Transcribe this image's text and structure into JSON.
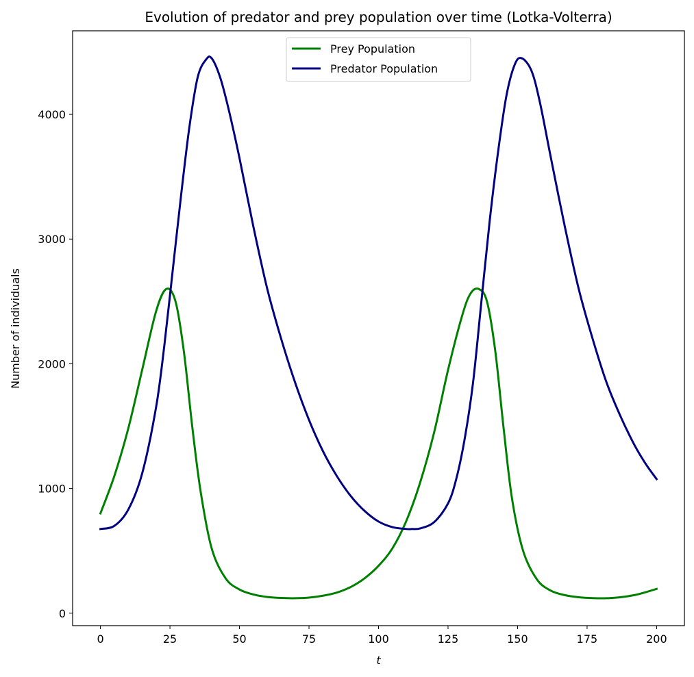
{
  "chart_data": {
    "type": "line",
    "title": "Evolution of predator and prey population over time (Lotka-Volterra)",
    "xlabel": "t",
    "ylabel": "Number of individuals",
    "xlim": [
      -10,
      210
    ],
    "ylim": [
      -100,
      4670
    ],
    "xticks": [
      0,
      25,
      50,
      75,
      100,
      125,
      150,
      175,
      200
    ],
    "yticks": [
      0,
      1000,
      2000,
      3000,
      4000
    ],
    "grid": false,
    "legend_position": "top-center",
    "series": [
      {
        "name": "Prey Population",
        "color": "#008000",
        "x": [
          0,
          5,
          10,
          15,
          20,
          23.7,
          27,
          30,
          33,
          36,
          40,
          45,
          50,
          55,
          60,
          65,
          70,
          75,
          80,
          85,
          90,
          95,
          100,
          105,
          110,
          115,
          120,
          125,
          130,
          133,
          136,
          139,
          142,
          145,
          148,
          152,
          157,
          162,
          167,
          172,
          177,
          182,
          187,
          192,
          196,
          200
        ],
        "y": [
          800,
          1100,
          1480,
          1950,
          2420,
          2600,
          2500,
          2100,
          1500,
          980,
          520,
          280,
          190,
          150,
          130,
          122,
          120,
          125,
          140,
          165,
          210,
          280,
          380,
          520,
          740,
          1050,
          1450,
          1950,
          2380,
          2560,
          2600,
          2500,
          2100,
          1480,
          920,
          500,
          270,
          180,
          145,
          128,
          121,
          120,
          128,
          145,
          168,
          195
        ]
      },
      {
        "name": "Predator Population",
        "color": "#000080",
        "x": [
          0,
          5,
          10,
          15,
          20,
          23,
          26,
          29,
          32,
          35,
          38,
          40,
          43,
          46,
          50,
          55,
          60,
          65,
          70,
          75,
          80,
          85,
          90,
          95,
          100,
          105,
          110,
          112,
          115,
          120,
          125,
          128,
          131,
          134,
          137,
          140,
          143,
          146,
          149,
          151.5,
          155,
          158,
          162,
          167,
          172,
          177,
          182,
          187,
          192,
          196,
          200
        ],
        "y": [
          675,
          700,
          830,
          1120,
          1650,
          2150,
          2750,
          3350,
          3900,
          4300,
          4440,
          4450,
          4300,
          4050,
          3650,
          3100,
          2600,
          2200,
          1850,
          1550,
          1300,
          1100,
          940,
          820,
          735,
          690,
          675,
          675,
          680,
          730,
          880,
          1080,
          1400,
          1850,
          2500,
          3150,
          3700,
          4150,
          4400,
          4450,
          4350,
          4100,
          3650,
          3100,
          2600,
          2200,
          1850,
          1580,
          1350,
          1200,
          1075
        ]
      }
    ]
  }
}
